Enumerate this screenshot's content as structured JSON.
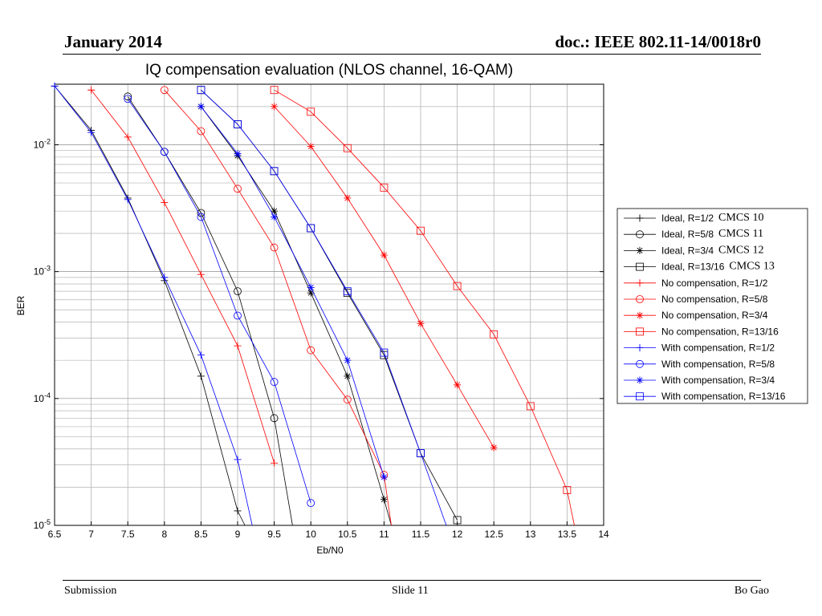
{
  "header": {
    "left": "January 2014",
    "right": "doc.: IEEE 802.11-14/0018r0"
  },
  "footer": {
    "left": "Submission",
    "center": "Slide 11",
    "right": "Bo Gao"
  },
  "chart_data": {
    "type": "line",
    "title": "IQ compensation evaluation (NLOS channel, 16-QAM)",
    "xlabel": "Eb/N0",
    "ylabel": "BER",
    "xlim": [
      6.5,
      14
    ],
    "ylim": [
      1e-05,
      0.03
    ],
    "yscale": "log",
    "grid": true,
    "legend_position": "right",
    "xticks": [
      6.5,
      7,
      7.5,
      8,
      8.5,
      9,
      9.5,
      10,
      10.5,
      11,
      11.5,
      12,
      12.5,
      13,
      13.5,
      14
    ],
    "xtick_labels": [
      "6.5",
      "7",
      "7.5",
      "8",
      "8.5",
      "9",
      "9.5",
      "10",
      "10.5",
      "11",
      "11.5",
      "12",
      "12.5",
      "13",
      "13.5",
      "14"
    ],
    "yticks": [
      {
        "value": 1e-05,
        "base": "10",
        "exp": "-5"
      },
      {
        "value": 0.0001,
        "base": "10",
        "exp": "-4"
      },
      {
        "value": 0.001,
        "base": "10",
        "exp": "-3"
      },
      {
        "value": 0.01,
        "base": "10",
        "exp": "-2"
      }
    ],
    "series": [
      {
        "name": "Ideal, R=1/2",
        "annotation": "CMCS 10",
        "color": "#000000",
        "marker": "plus",
        "x": [
          6.5,
          7,
          7.5,
          8,
          8.5,
          9.0,
          9.1
        ],
        "y": [
          0.029,
          0.013,
          0.0038,
          0.00085,
          0.00015,
          1.3e-05,
          1e-05
        ]
      },
      {
        "name": "Ideal, R=5/8",
        "annotation": "CMCS 11",
        "color": "#000000",
        "marker": "circle",
        "x": [
          7.5,
          8,
          8.5,
          9,
          9.5,
          9.75
        ],
        "y": [
          0.024,
          0.0088,
          0.0029,
          0.0007,
          7e-05,
          1e-05
        ]
      },
      {
        "name": "Ideal, R=3/4",
        "annotation": "CMCS 12",
        "color": "#000000",
        "marker": "star",
        "x": [
          8.5,
          9,
          9.5,
          10,
          10.5,
          11,
          11.1
        ],
        "y": [
          0.02,
          0.0082,
          0.003,
          0.00068,
          0.00015,
          1.6e-05,
          1e-05
        ]
      },
      {
        "name": "Ideal, R=13/16",
        "annotation": "CMCS 13",
        "color": "#000000",
        "marker": "square",
        "x": [
          8.5,
          9,
          9.5,
          10,
          10.5,
          11,
          11.5,
          12
        ],
        "y": [
          0.027,
          0.0145,
          0.0062,
          0.0022,
          0.00068,
          0.00022,
          3.7e-05,
          1.1e-05
        ]
      },
      {
        "name": "No compensation, R=1/2",
        "color": "#ff0000",
        "marker": "plus",
        "x": [
          7,
          7.5,
          8,
          8.5,
          9,
          9.5
        ],
        "y": [
          0.027,
          0.0115,
          0.0035,
          0.00095,
          0.00026,
          3.1e-05
        ]
      },
      {
        "name": "No compensation, R=5/8",
        "color": "#ff0000",
        "marker": "circle",
        "x": [
          8,
          8.5,
          9,
          9.5,
          10,
          10.5,
          11,
          11.1
        ],
        "y": [
          0.027,
          0.0128,
          0.0045,
          0.00155,
          0.00024,
          9.8e-05,
          2.5e-05,
          1e-05
        ]
      },
      {
        "name": "No compensation, R=3/4",
        "color": "#ff0000",
        "marker": "star",
        "x": [
          9.5,
          10,
          10.5,
          11,
          11.5,
          12,
          12.5
        ],
        "y": [
          0.02,
          0.0097,
          0.0038,
          0.00135,
          0.00039,
          0.000128,
          4.1e-05
        ]
      },
      {
        "name": "No compensation, R=13/16",
        "color": "#ff0000",
        "marker": "square",
        "x": [
          9.5,
          10,
          10.5,
          11,
          11.5,
          12,
          12.5,
          13,
          13.5,
          13.6
        ],
        "y": [
          0.027,
          0.0182,
          0.0094,
          0.0046,
          0.0021,
          0.00077,
          0.00032,
          8.7e-05,
          1.9e-05,
          1e-05
        ]
      },
      {
        "name": "With compensation, R=1/2",
        "color": "#0000ff",
        "marker": "plus",
        "x": [
          6.5,
          7,
          7.5,
          8,
          8.5,
          9,
          9.2
        ],
        "y": [
          0.029,
          0.0125,
          0.0037,
          0.0009,
          0.00022,
          3.3e-05,
          1e-05
        ]
      },
      {
        "name": "With compensation, R=5/8",
        "color": "#0000ff",
        "marker": "circle",
        "x": [
          7.5,
          8,
          8.5,
          9,
          9.5,
          10
        ],
        "y": [
          0.023,
          0.0088,
          0.0027,
          0.00045,
          0.000135,
          1.5e-05
        ]
      },
      {
        "name": "With compensation, R=3/4",
        "color": "#0000ff",
        "marker": "star",
        "x": [
          8.5,
          9,
          9.5,
          10,
          10.5,
          11
        ],
        "y": [
          0.02,
          0.0085,
          0.0027,
          0.00075,
          0.0002,
          2.4e-05
        ]
      },
      {
        "name": "With compensation, R=13/16",
        "color": "#0000ff",
        "marker": "square",
        "x": [
          8.5,
          9,
          9.5,
          10,
          10.5,
          11,
          11.5,
          11.85
        ],
        "y": [
          0.027,
          0.0145,
          0.0062,
          0.0022,
          0.0007,
          0.00023,
          3.7e-05,
          1e-05
        ]
      }
    ]
  }
}
